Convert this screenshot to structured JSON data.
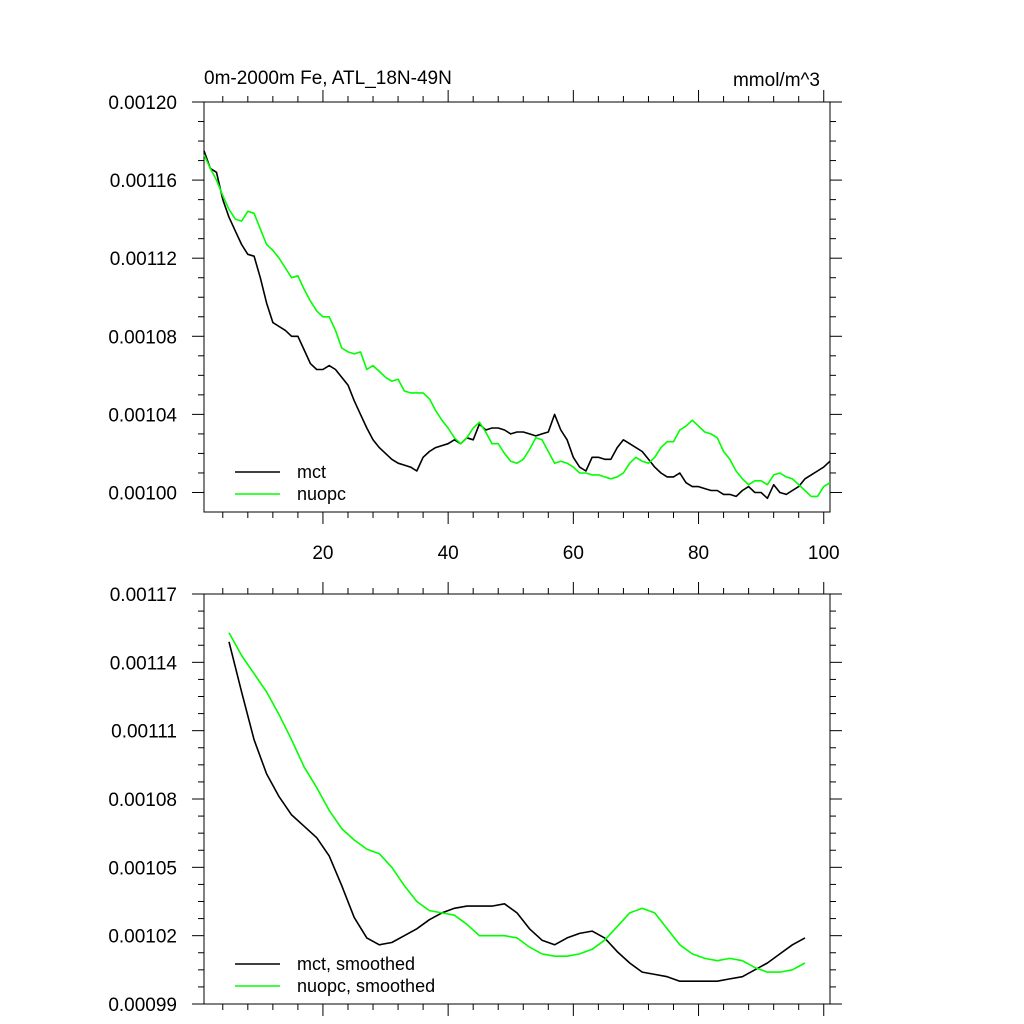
{
  "chart_data": [
    {
      "type": "line",
      "title": "0m-2000m Fe, ATL_18N-49N",
      "units": "mmol/m^3",
      "xlabel": "",
      "ylabel": "",
      "xlim": [
        1,
        101
      ],
      "ylim": [
        0.00099,
        0.0012
      ],
      "x_ticks": [
        20,
        40,
        60,
        80,
        100
      ],
      "y_ticks": [
        0.001,
        0.00104,
        0.00108,
        0.00112,
        0.00116,
        0.0012
      ],
      "y_tick_labels": [
        "0.00100",
        "0.00104",
        "0.00108",
        "0.00112",
        "0.00116",
        "0.00120"
      ],
      "legend_position": "bottom-left",
      "series": [
        {
          "name": "mct",
          "color": "#000000",
          "x": [
            1,
            2,
            3,
            4,
            5,
            6,
            7,
            8,
            9,
            10,
            11,
            12,
            13,
            14,
            15,
            16,
            17,
            18,
            19,
            20,
            21,
            22,
            23,
            24,
            25,
            26,
            27,
            28,
            29,
            30,
            31,
            32,
            33,
            34,
            35,
            36,
            37,
            38,
            39,
            40,
            41,
            42,
            43,
            44,
            45,
            46,
            47,
            48,
            49,
            50,
            51,
            52,
            53,
            54,
            55,
            56,
            57,
            58,
            59,
            60,
            61,
            62,
            63,
            64,
            65,
            66,
            67,
            68,
            69,
            70,
            71,
            72,
            73,
            74,
            75,
            76,
            77,
            78,
            79,
            80,
            81,
            82,
            83,
            84,
            85,
            86,
            87,
            88,
            89,
            90,
            91,
            92,
            93,
            94,
            95,
            96,
            97,
            98,
            99,
            100,
            101
          ],
          "values": [
            0.001175,
            0.001166,
            0.001164,
            0.00115,
            0.001141,
            0.001134,
            0.001127,
            0.001122,
            0.001121,
            0.00111,
            0.001097,
            0.001087,
            0.001085,
            0.001083,
            0.00108,
            0.00108,
            0.001073,
            0.001066,
            0.001063,
            0.001063,
            0.001065,
            0.001063,
            0.001059,
            0.001055,
            0.001047,
            0.00104,
            0.001033,
            0.001027,
            0.001023,
            0.00102,
            0.001017,
            0.001015,
            0.001014,
            0.001013,
            0.001011,
            0.001018,
            0.001021,
            0.001023,
            0.001024,
            0.001025,
            0.001027,
            0.001025,
            0.001028,
            0.001027,
            0.001035,
            0.001032,
            0.001033,
            0.001033,
            0.001032,
            0.00103,
            0.001031,
            0.001031,
            0.00103,
            0.001029,
            0.00103,
            0.001031,
            0.00104,
            0.001032,
            0.001027,
            0.001018,
            0.001013,
            0.001011,
            0.001018,
            0.001018,
            0.001017,
            0.001017,
            0.001023,
            0.001027,
            0.001025,
            0.001023,
            0.001021,
            0.001017,
            0.001013,
            0.00101,
            0.001008,
            0.001008,
            0.00101,
            0.001005,
            0.001003,
            0.001003,
            0.001002,
            0.001001,
            0.001001,
            0.000999,
            0.000999,
            0.000998,
            0.001001,
            0.001003,
            0.001,
            0.001,
            0.000997,
            0.001004,
            0.001,
            0.000999,
            0.001001,
            0.001003,
            0.001007,
            0.001009,
            0.001011,
            0.001013,
            0.001016
          ]
        },
        {
          "name": "nuopc",
          "color": "#00ff00",
          "x": [
            1,
            2,
            3,
            4,
            5,
            6,
            7,
            8,
            9,
            10,
            11,
            12,
            13,
            14,
            15,
            16,
            17,
            18,
            19,
            20,
            21,
            22,
            23,
            24,
            25,
            26,
            27,
            28,
            29,
            30,
            31,
            32,
            33,
            34,
            35,
            36,
            37,
            38,
            39,
            40,
            41,
            42,
            43,
            44,
            45,
            46,
            47,
            48,
            49,
            50,
            51,
            52,
            53,
            54,
            55,
            56,
            57,
            58,
            59,
            60,
            61,
            62,
            63,
            64,
            65,
            66,
            67,
            68,
            69,
            70,
            71,
            72,
            73,
            74,
            75,
            76,
            77,
            78,
            79,
            80,
            81,
            82,
            83,
            84,
            85,
            86,
            87,
            88,
            89,
            90,
            91,
            92,
            93,
            94,
            95,
            96,
            97,
            98,
            99,
            100,
            101
          ],
          "values": [
            0.001173,
            0.001166,
            0.00116,
            0.001152,
            0.001145,
            0.00114,
            0.001139,
            0.001144,
            0.001143,
            0.001135,
            0.001127,
            0.001124,
            0.00112,
            0.001115,
            0.00111,
            0.001111,
            0.001104,
            0.001098,
            0.001093,
            0.00109,
            0.00109,
            0.001083,
            0.001074,
            0.001072,
            0.001071,
            0.001072,
            0.001063,
            0.001065,
            0.001062,
            0.001059,
            0.001057,
            0.001058,
            0.001052,
            0.001051,
            0.001051,
            0.001051,
            0.001048,
            0.001042,
            0.001037,
            0.001033,
            0.001028,
            0.001025,
            0.001028,
            0.001033,
            0.001036,
            0.001031,
            0.001025,
            0.001025,
            0.00102,
            0.001016,
            0.001015,
            0.001017,
            0.001022,
            0.001028,
            0.001027,
            0.001021,
            0.001015,
            0.001016,
            0.001015,
            0.001013,
            0.00101,
            0.00101,
            0.001009,
            0.001009,
            0.001008,
            0.001007,
            0.001008,
            0.00101,
            0.001015,
            0.001018,
            0.001016,
            0.001015,
            0.001018,
            0.001023,
            0.001026,
            0.001026,
            0.001032,
            0.001034,
            0.001037,
            0.001034,
            0.001031,
            0.00103,
            0.001028,
            0.001021,
            0.001017,
            0.001011,
            0.001007,
            0.001004,
            0.001006,
            0.001006,
            0.001004,
            0.001009,
            0.00101,
            0.001008,
            0.001007,
            0.001004,
            0.001001,
            0.000998,
            0.000998,
            0.001003,
            0.001005
          ]
        }
      ]
    },
    {
      "type": "line",
      "title": "",
      "xlabel": "",
      "ylabel": "",
      "xlim": [
        1,
        101
      ],
      "ylim": [
        0.00099,
        0.00117
      ],
      "x_ticks": [
        20,
        40,
        60,
        80,
        100
      ],
      "y_ticks": [
        0.00099,
        0.00102,
        0.00105,
        0.00108,
        0.00111,
        0.00114,
        0.00117
      ],
      "y_tick_labels": [
        "0.00099",
        "0.00102",
        "0.00105",
        "0.00108",
        "0.00111",
        "0.00114",
        "0.00117"
      ],
      "legend_position": "bottom-left",
      "series": [
        {
          "name": "mct, smoothed",
          "color": "#000000",
          "x": [
            5,
            7,
            9,
            11,
            13,
            15,
            17,
            19,
            21,
            23,
            25,
            27,
            29,
            31,
            33,
            35,
            37,
            39,
            41,
            43,
            45,
            47,
            49,
            51,
            53,
            55,
            57,
            59,
            61,
            63,
            65,
            67,
            69,
            71,
            73,
            75,
            77,
            79,
            81,
            83,
            85,
            87,
            89,
            91,
            93,
            95,
            97
          ],
          "values": [
            0.001149,
            0.001127,
            0.001106,
            0.001091,
            0.001081,
            0.001073,
            0.001068,
            0.001063,
            0.001055,
            0.001042,
            0.001028,
            0.001019,
            0.001016,
            0.001017,
            0.00102,
            0.001023,
            0.001027,
            0.00103,
            0.001032,
            0.001033,
            0.001033,
            0.001033,
            0.001034,
            0.00103,
            0.001023,
            0.001018,
            0.001016,
            0.001019,
            0.001021,
            0.001022,
            0.001019,
            0.001013,
            0.001008,
            0.001004,
            0.001003,
            0.001002,
            0.001,
            0.001,
            0.001,
            0.001,
            0.001001,
            0.001002,
            0.001005,
            0.001008,
            0.001012,
            0.001016,
            0.001019
          ]
        },
        {
          "name": "nuopc, smoothed",
          "color": "#00ff00",
          "x": [
            5,
            7,
            9,
            11,
            13,
            15,
            17,
            19,
            21,
            23,
            25,
            27,
            29,
            31,
            33,
            35,
            37,
            39,
            41,
            43,
            45,
            47,
            49,
            51,
            53,
            55,
            57,
            59,
            61,
            63,
            65,
            67,
            69,
            71,
            73,
            75,
            77,
            79,
            81,
            83,
            85,
            87,
            89,
            91,
            93,
            95,
            97
          ],
          "values": [
            0.001153,
            0.001143,
            0.001135,
            0.001127,
            0.001117,
            0.001106,
            0.001094,
            0.001085,
            0.001075,
            0.001067,
            0.001062,
            0.001058,
            0.001056,
            0.00105,
            0.001042,
            0.001035,
            0.001031,
            0.00103,
            0.001029,
            0.001025,
            0.00102,
            0.00102,
            0.00102,
            0.001019,
            0.001015,
            0.001012,
            0.001011,
            0.001011,
            0.001012,
            0.001014,
            0.001018,
            0.001024,
            0.00103,
            0.001032,
            0.00103,
            0.001023,
            0.001016,
            0.001012,
            0.00101,
            0.001009,
            0.00101,
            0.001009,
            0.001006,
            0.001004,
            0.001004,
            0.001005,
            0.001008
          ]
        }
      ]
    }
  ]
}
